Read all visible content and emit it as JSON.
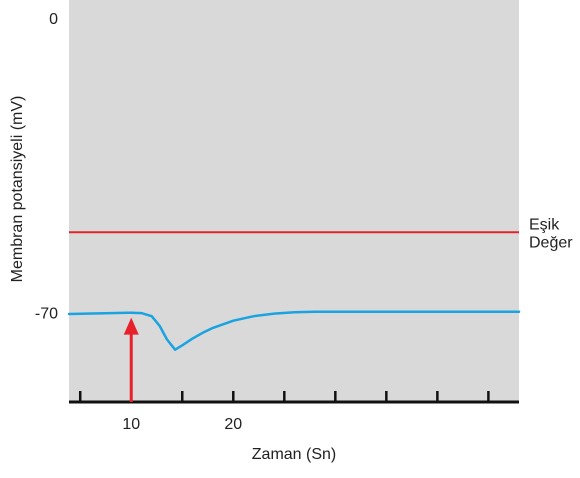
{
  "chart_data": {
    "type": "line",
    "title": "",
    "xlabel": "Zaman (Sn)",
    "ylabel": "Membran potansiyeli (mV)",
    "xlim": [
      3.9,
      48
    ],
    "ylim": [
      -90,
      0
    ],
    "x_tick_values": [
      5,
      10,
      15,
      20,
      25,
      30,
      35,
      40,
      45
    ],
    "x_tick_labels": [
      {
        "value": 10,
        "label": "10"
      },
      {
        "value": 20,
        "label": "20"
      }
    ],
    "y_tick_labels": [
      {
        "value": 0,
        "label": "0"
      },
      {
        "value": -70,
        "label": "-70"
      }
    ],
    "series": [
      {
        "color": "#1aa3e0",
        "x": [
          3.9,
          8,
          10,
          11,
          12,
          12.8,
          13.5,
          14.3,
          15,
          16,
          17,
          18,
          20,
          22,
          24,
          26,
          28,
          30,
          48
        ],
        "y": [
          -70.3,
          -70.1,
          -70,
          -70.1,
          -70.8,
          -73,
          -76,
          -78.3,
          -77.3,
          -75.8,
          -74.5,
          -73.4,
          -71.8,
          -70.8,
          -70.2,
          -69.9,
          -69.8,
          -69.8,
          -69.8
        ]
      }
    ],
    "reference_lines": [
      {
        "y": -52,
        "color": "#e0242a",
        "label_lines": [
          "Eşik",
          "Değer"
        ]
      }
    ],
    "annotations": [
      {
        "type": "arrow",
        "x": 10,
        "y_from": -90,
        "y_to": -72,
        "color": "#e8202a"
      }
    ],
    "grid": false,
    "background": "#d9d9d9"
  }
}
